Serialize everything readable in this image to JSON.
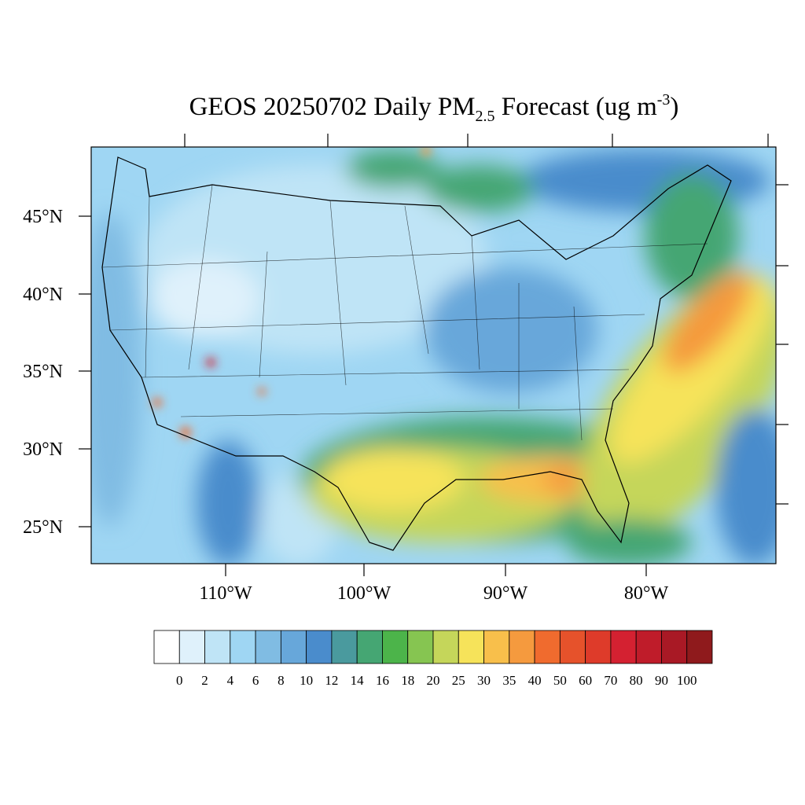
{
  "header": {
    "title": {
      "main": "GEOS 20250702 Daily PM",
      "sub": "2.5",
      "middle": " Forecast (ug m",
      "sup": "-3",
      "end": ")"
    }
  },
  "map": {
    "lat_labels": [
      "45°N",
      "40°N",
      "35°N",
      "30°N",
      "25°N"
    ],
    "lon_labels": [
      "110°W",
      "100°W",
      "90°W",
      "80°W"
    ]
  },
  "colorbar": {
    "labels": [
      0,
      2,
      4,
      6,
      8,
      10,
      12,
      14,
      16,
      18,
      20,
      25,
      30,
      35,
      40,
      50,
      60,
      70,
      80,
      90,
      100
    ],
    "colors": [
      "#ffffff",
      "#dff1fb",
      "#bfe4f6",
      "#9fd6f3",
      "#80bce3",
      "#67a7da",
      "#4a8ccc",
      "#4a9a9e",
      "#45a673",
      "#4cb44a",
      "#86c551",
      "#c5d65a",
      "#f6e35a",
      "#f8bf4b",
      "#f59a3e",
      "#f06b2e",
      "#e6522b",
      "#de3b2a",
      "#d42131",
      "#bf1c2a",
      "#a91925",
      "#8f1a1c"
    ]
  }
}
